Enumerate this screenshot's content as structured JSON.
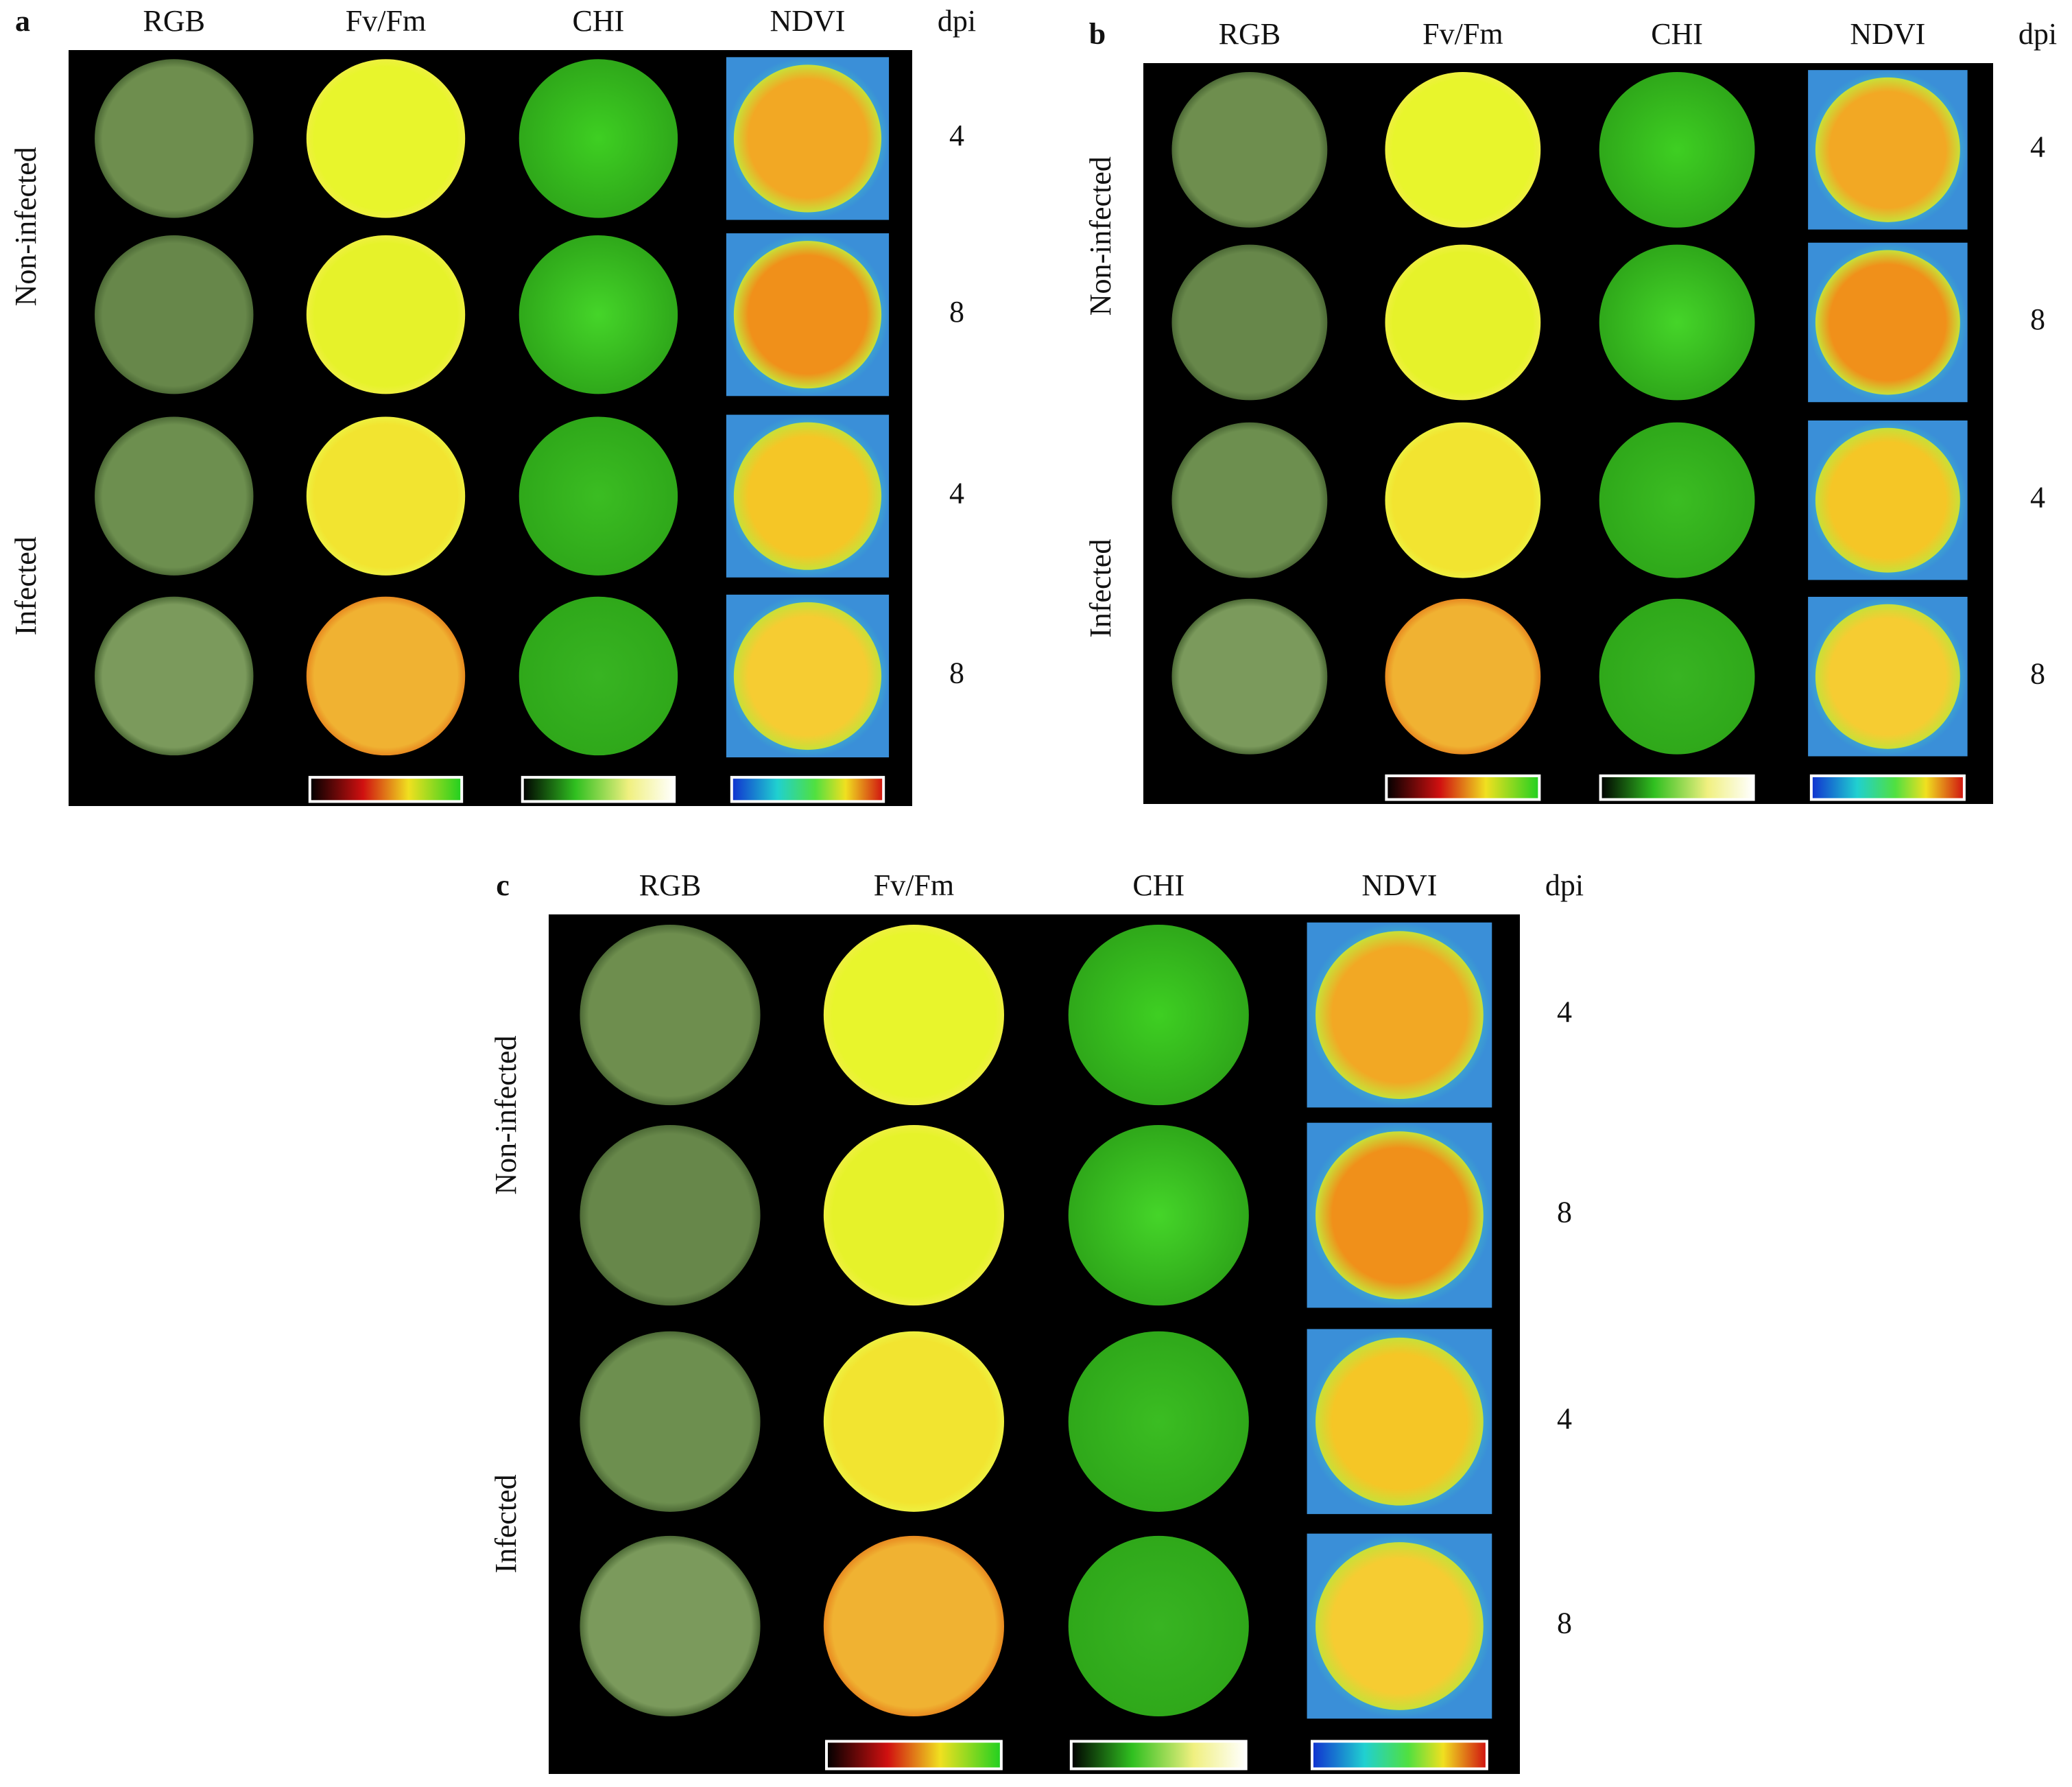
{
  "panels": [
    {
      "label": "a",
      "columns": [
        "RGB",
        "Fv/Fm",
        "CHI",
        "NDVI"
      ],
      "dpi_header": "dpi",
      "groups": [
        "Non-infected",
        "Infected"
      ],
      "dpi": [
        4,
        8,
        4,
        8
      ]
    },
    {
      "label": "b",
      "columns": [
        "RGB",
        "Fv/Fm",
        "CHI",
        "NDVI"
      ],
      "dpi_header": "dpi",
      "groups": [
        "Non-infected",
        "Infected"
      ],
      "dpi": [
        4,
        8,
        4,
        8
      ]
    },
    {
      "label": "c",
      "columns": [
        "RGB",
        "Fv/Fm",
        "CHI",
        "NDVI"
      ],
      "dpi_header": "dpi",
      "groups": [
        "Non-infected",
        "Infected"
      ],
      "dpi": [
        4,
        8,
        4,
        8
      ]
    }
  ]
}
